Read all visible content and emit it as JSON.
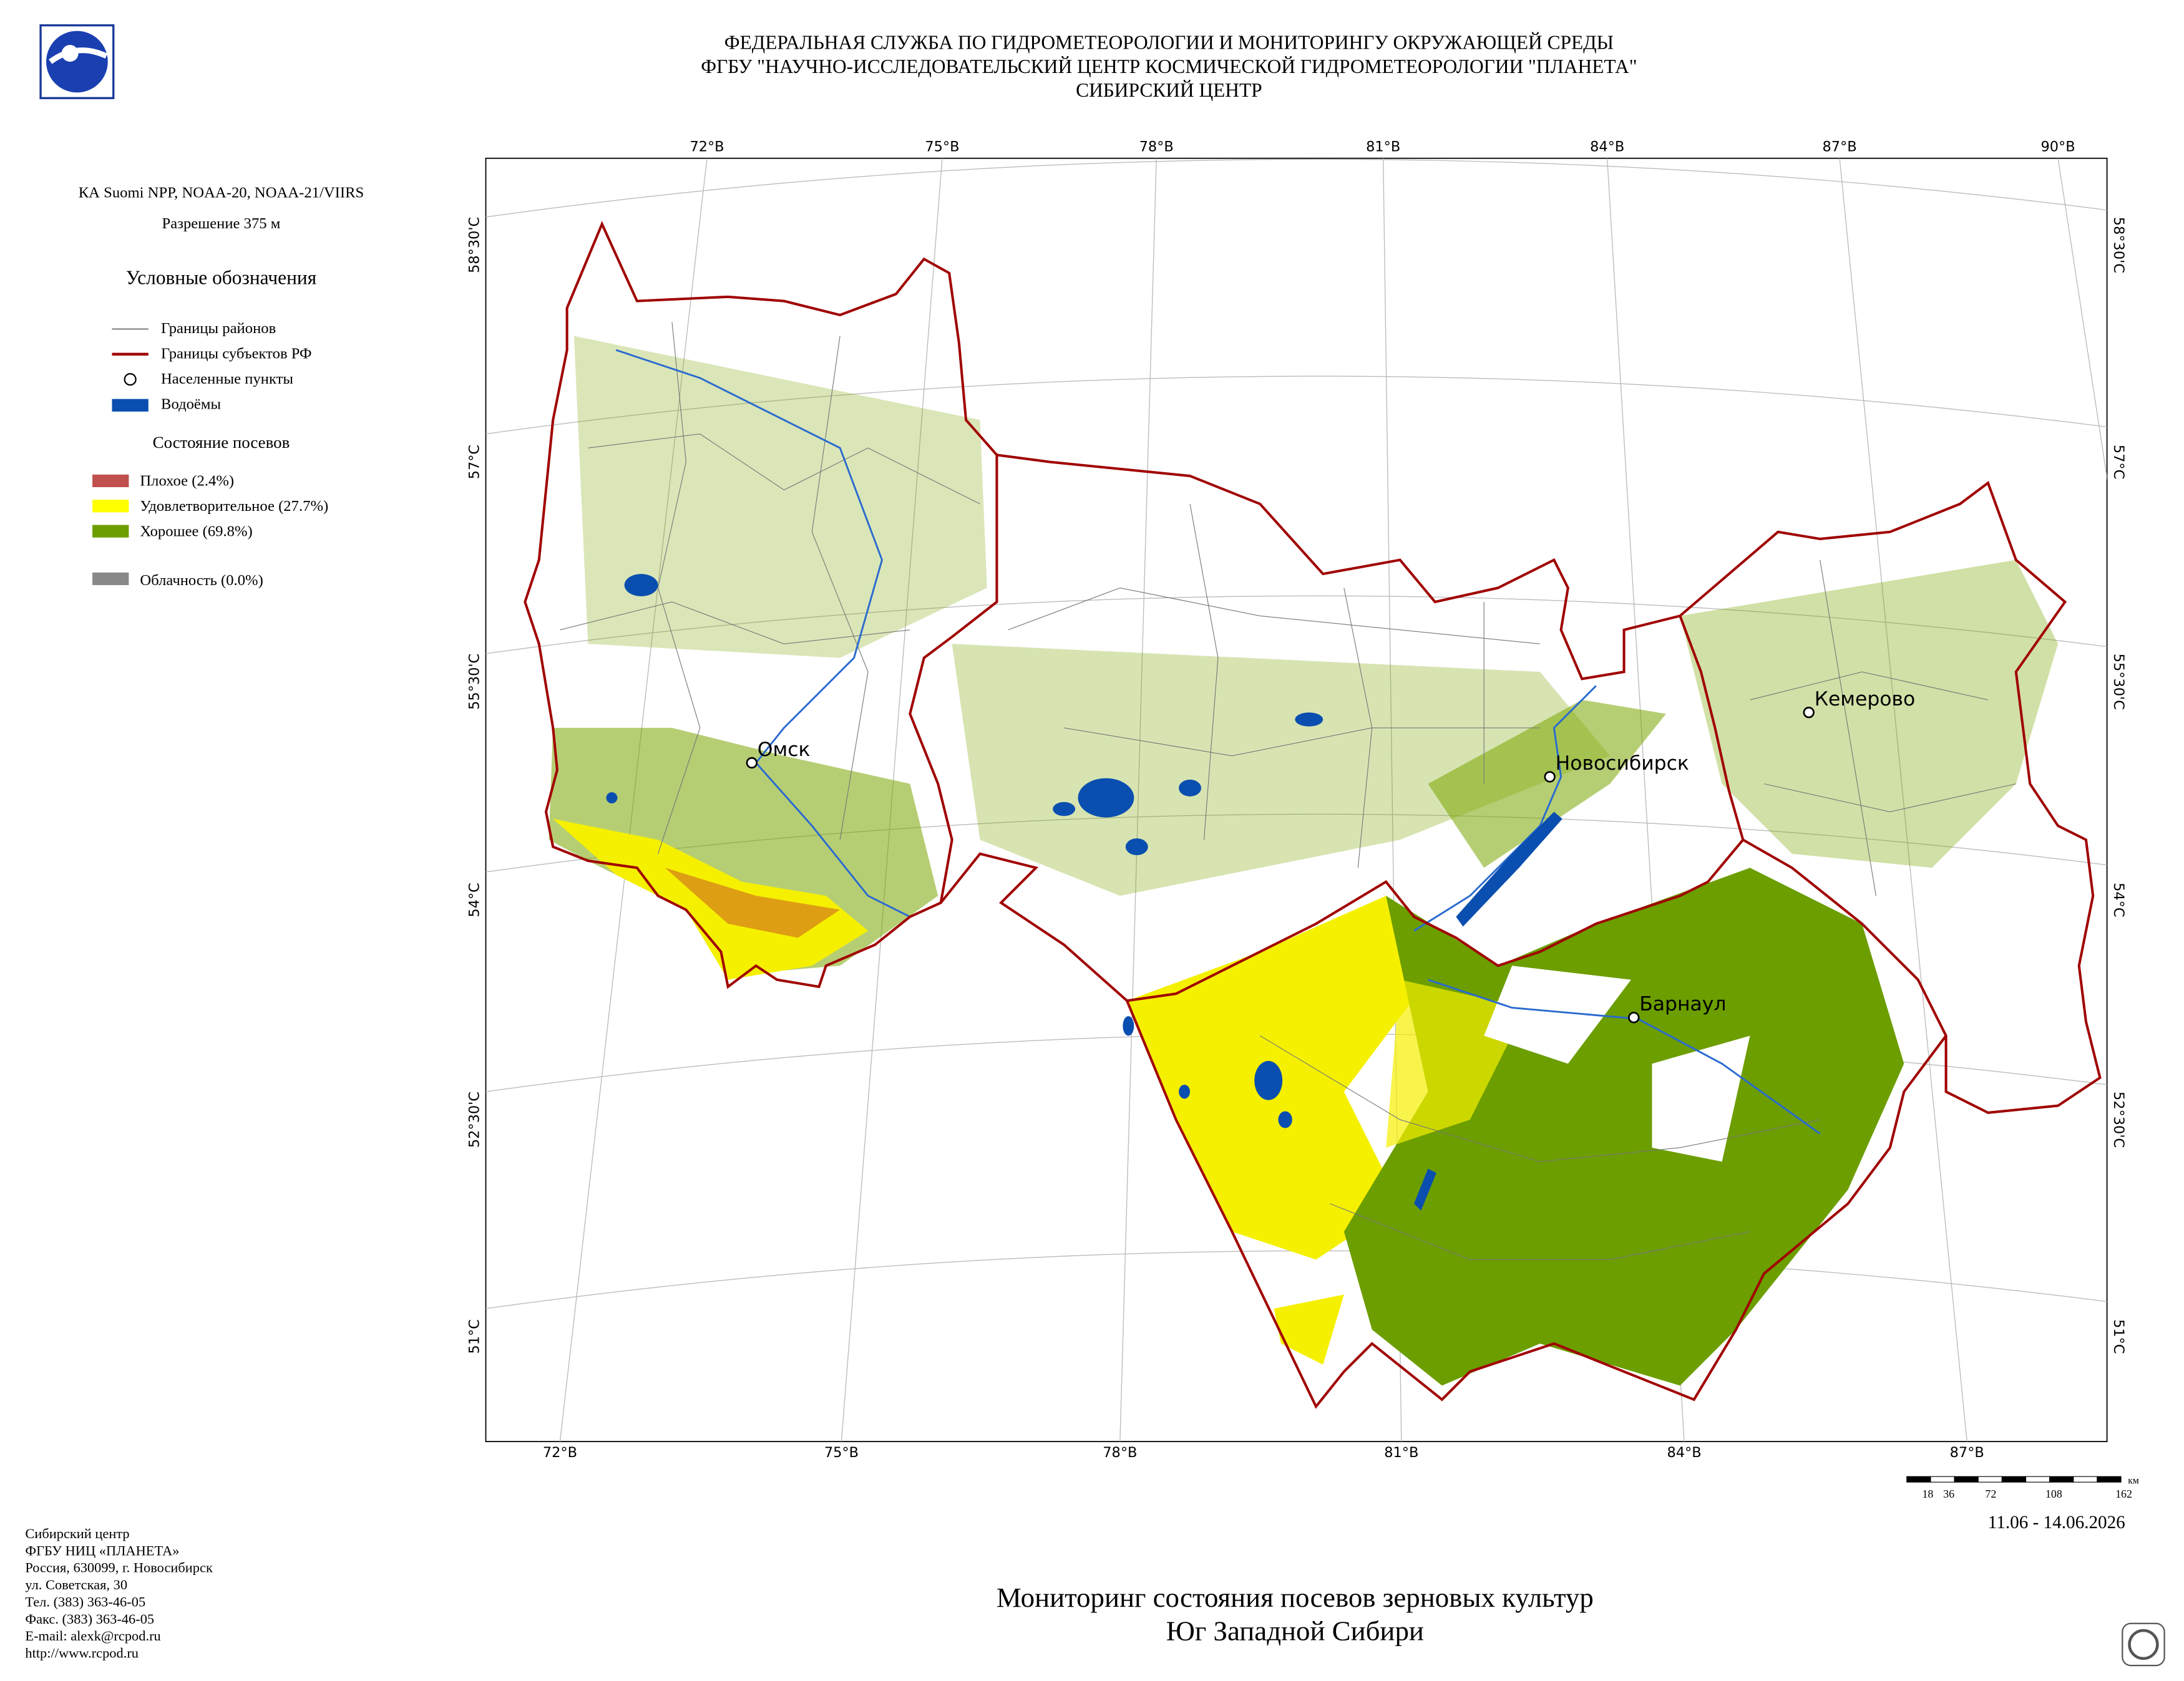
{
  "header": {
    "lines": [
      "ФЕДЕРАЛЬНАЯ СЛУЖБА ПО ГИДРОМЕТЕОРОЛОГИИ И МОНИТОРИНГУ ОКРУЖАЮЩЕЙ СРЕДЫ",
      "ФГБУ \"НАУЧНО-ИССЛЕДОВАТЕЛЬСКИЙ ЦЕНТР КОСМИЧЕСКОЙ ГИДРОМЕТЕОРОЛОГИИ \"ПЛАНЕТА\"",
      "СИБИРСКИЙ ЦЕНТР"
    ]
  },
  "side": {
    "satellite": "КА Suomi NPP, NOAA-20, NOAA-21/VIIRS",
    "resolution": "Разрешение 375 м",
    "legend_title": "Условные обозначения",
    "legend": [
      "Границы районов",
      "Границы субъектов РФ",
      "Населенные пункты",
      "Водоёмы"
    ],
    "crop_title": "Состояние посевов",
    "crops": [
      "Плохое (2.4%)",
      "Удовлетворительное (27.7%)",
      "Хорошее (69.8%)"
    ],
    "cloud": "Облачность (0.0%)"
  },
  "map": {
    "top_lon": [
      "72°В",
      "75°В",
      "78°В",
      "81°В",
      "84°В",
      "87°В",
      "90°В"
    ],
    "bottom_lon": [
      "72°В",
      "75°В",
      "78°В",
      "81°В",
      "84°В",
      "87°В"
    ],
    "lat": [
      "58°30'С",
      "57°С",
      "55°30'С",
      "54°С",
      "52°30'С",
      "51°С"
    ],
    "cities": [
      "Омск",
      "Новосибирск",
      "Кемерово",
      "Барнаул"
    ]
  },
  "scale": {
    "labels": [
      "18",
      "36",
      "72",
      "108",
      "162"
    ],
    "unit": "км"
  },
  "date": "11.06 - 14.06.2026",
  "title": [
    "Мониторинг состояния посевов зерновых культур",
    "Юг Западной Сибири"
  ],
  "footer": [
    "Сибирский центр",
    "ФГБУ НИЦ «ПЛАНЕТА»",
    "Россия, 630099, г. Новосибирск",
    "ул. Советская, 30",
    "Тел. (383) 363-46-05",
    "Факс. (383) 363-46-05",
    "E-mail: alexk@rcpod.ru",
    "http://www.rcpod.ru"
  ]
}
